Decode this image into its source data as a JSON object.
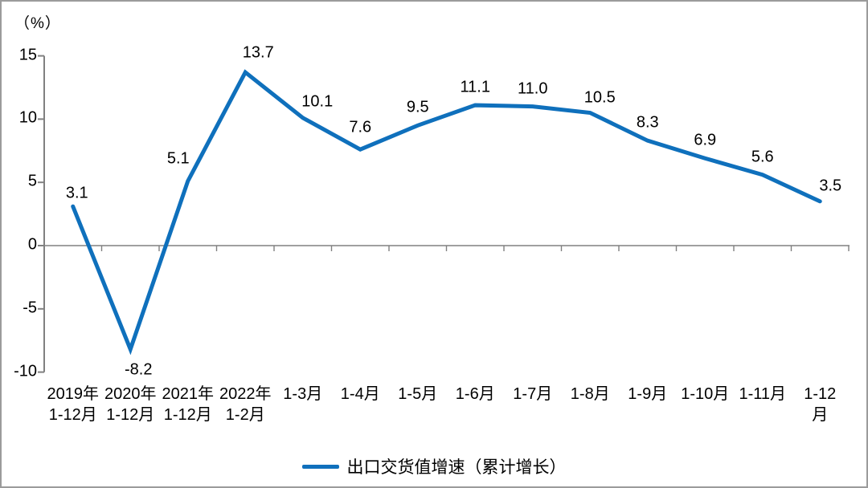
{
  "frame": {
    "background": "#ffffff",
    "border_color": "#9b9b9b"
  },
  "chart_data": {
    "type": "line",
    "title": "",
    "unit_label": "（%）",
    "categories": [
      "2019年\n1-12月",
      "2020年\n1-12月",
      "2021年\n1-12月",
      "2022年\n1-2月",
      "1-3月",
      "1-4月",
      "1-5月",
      "1-6月",
      "1-7月",
      "1-8月",
      "1-9月",
      "1-10月",
      "1-11月",
      "1-12月"
    ],
    "series": [
      {
        "name": "出口交货值增速（累计增长）",
        "color": "#0f70bc",
        "values": [
          3.1,
          -8.2,
          5.1,
          13.7,
          10.1,
          7.6,
          9.5,
          11.1,
          11.0,
          10.5,
          8.3,
          6.9,
          5.6,
          3.5
        ],
        "value_labels": [
          "3.1",
          "-8.2",
          "5.1",
          "13.7",
          "10.1",
          "7.6",
          "9.5",
          "11.1",
          "11.0",
          "10.5",
          "8.3",
          "6.9",
          "5.6",
          "3.5"
        ]
      }
    ],
    "ylim": [
      -10,
      15
    ],
    "yticks": [
      15,
      10,
      5,
      0,
      -5,
      -10
    ],
    "ytick_labels": [
      "15",
      "10",
      "5",
      "0",
      "-5",
      "-10"
    ],
    "grid": false,
    "axis_color": "#808080",
    "legend_position": "bottom"
  },
  "legend": {
    "label": "出口交货值增速（累计增长）"
  }
}
